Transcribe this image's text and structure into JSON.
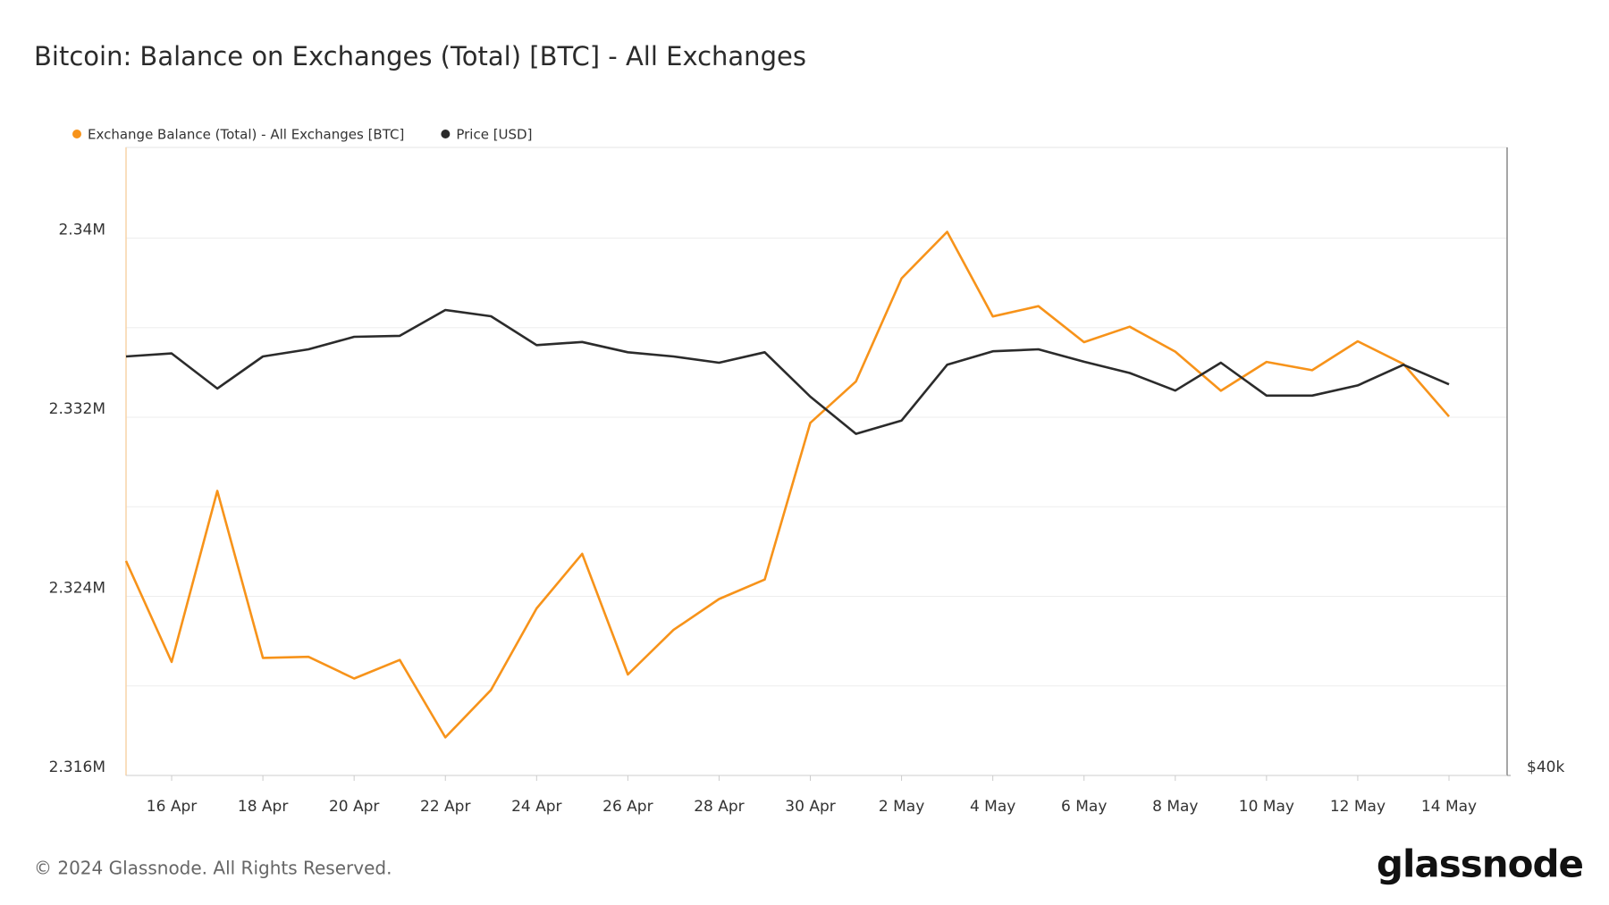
{
  "chart_data": {
    "type": "line",
    "title": "Bitcoin: Balance on Exchanges (Total) [BTC] - All Exchanges",
    "footer": "© 2024 Glassnode. All Rights Reserved.",
    "logo": "glassnode",
    "categories": [
      null,
      "16 Apr",
      null,
      "18 Apr",
      null,
      "20 Apr",
      null,
      "22 Apr",
      null,
      "24 Apr",
      null,
      "26 Apr",
      null,
      "28 Apr",
      null,
      "30 Apr",
      null,
      "2 May",
      null,
      "4 May",
      null,
      "6 May",
      null,
      "8 May",
      null,
      "10 May",
      null,
      "12 May",
      null,
      "14 May"
    ],
    "series": [
      {
        "name": "Exchange Balance (Total) - All Exchanges [BTC]",
        "color": "#f7931a",
        "axis": "y",
        "values": [
          2325580,
          2321070,
          2328710,
          2321250,
          2321300,
          2320330,
          2321160,
          2317700,
          2319820,
          2323460,
          2325900,
          2320510,
          2322500,
          2323880,
          2324750,
          2331750,
          2333600,
          2338200,
          2340280,
          2336500,
          2336960,
          2335350,
          2336040,
          2334930,
          2333180,
          2334470,
          2334100,
          2335390,
          2334380,
          2332030
        ]
      },
      {
        "name": "Price [USD]",
        "color": "#2b2b2b",
        "axis": "y2",
        "values": [
          63520,
          63730,
          61310,
          63520,
          64020,
          64910,
          64980,
          66860,
          66400,
          64320,
          64540,
          63810,
          63520,
          63080,
          63810,
          60760,
          58320,
          59180,
          62940,
          63880,
          64020,
          63150,
          62370,
          61170,
          63080,
          60830,
          60830,
          61520,
          62940,
          61590
        ]
      }
    ],
    "ylim": [
      2316000,
      2344050
    ],
    "yticks": [
      {
        "value": 2316000,
        "label": "2.316M"
      },
      {
        "value": 2324000,
        "label": "2.324M"
      },
      {
        "value": 2332000,
        "label": "2.332M"
      },
      {
        "value": 2340000,
        "label": "2.34M"
      }
    ],
    "yminor": [
      2320000,
      2328000,
      2336000
    ],
    "y2lim": [
      40000,
      80000
    ],
    "y2ticks": [
      {
        "value": 40000,
        "label": "$40k"
      }
    ],
    "y2log": true,
    "grid": true
  }
}
